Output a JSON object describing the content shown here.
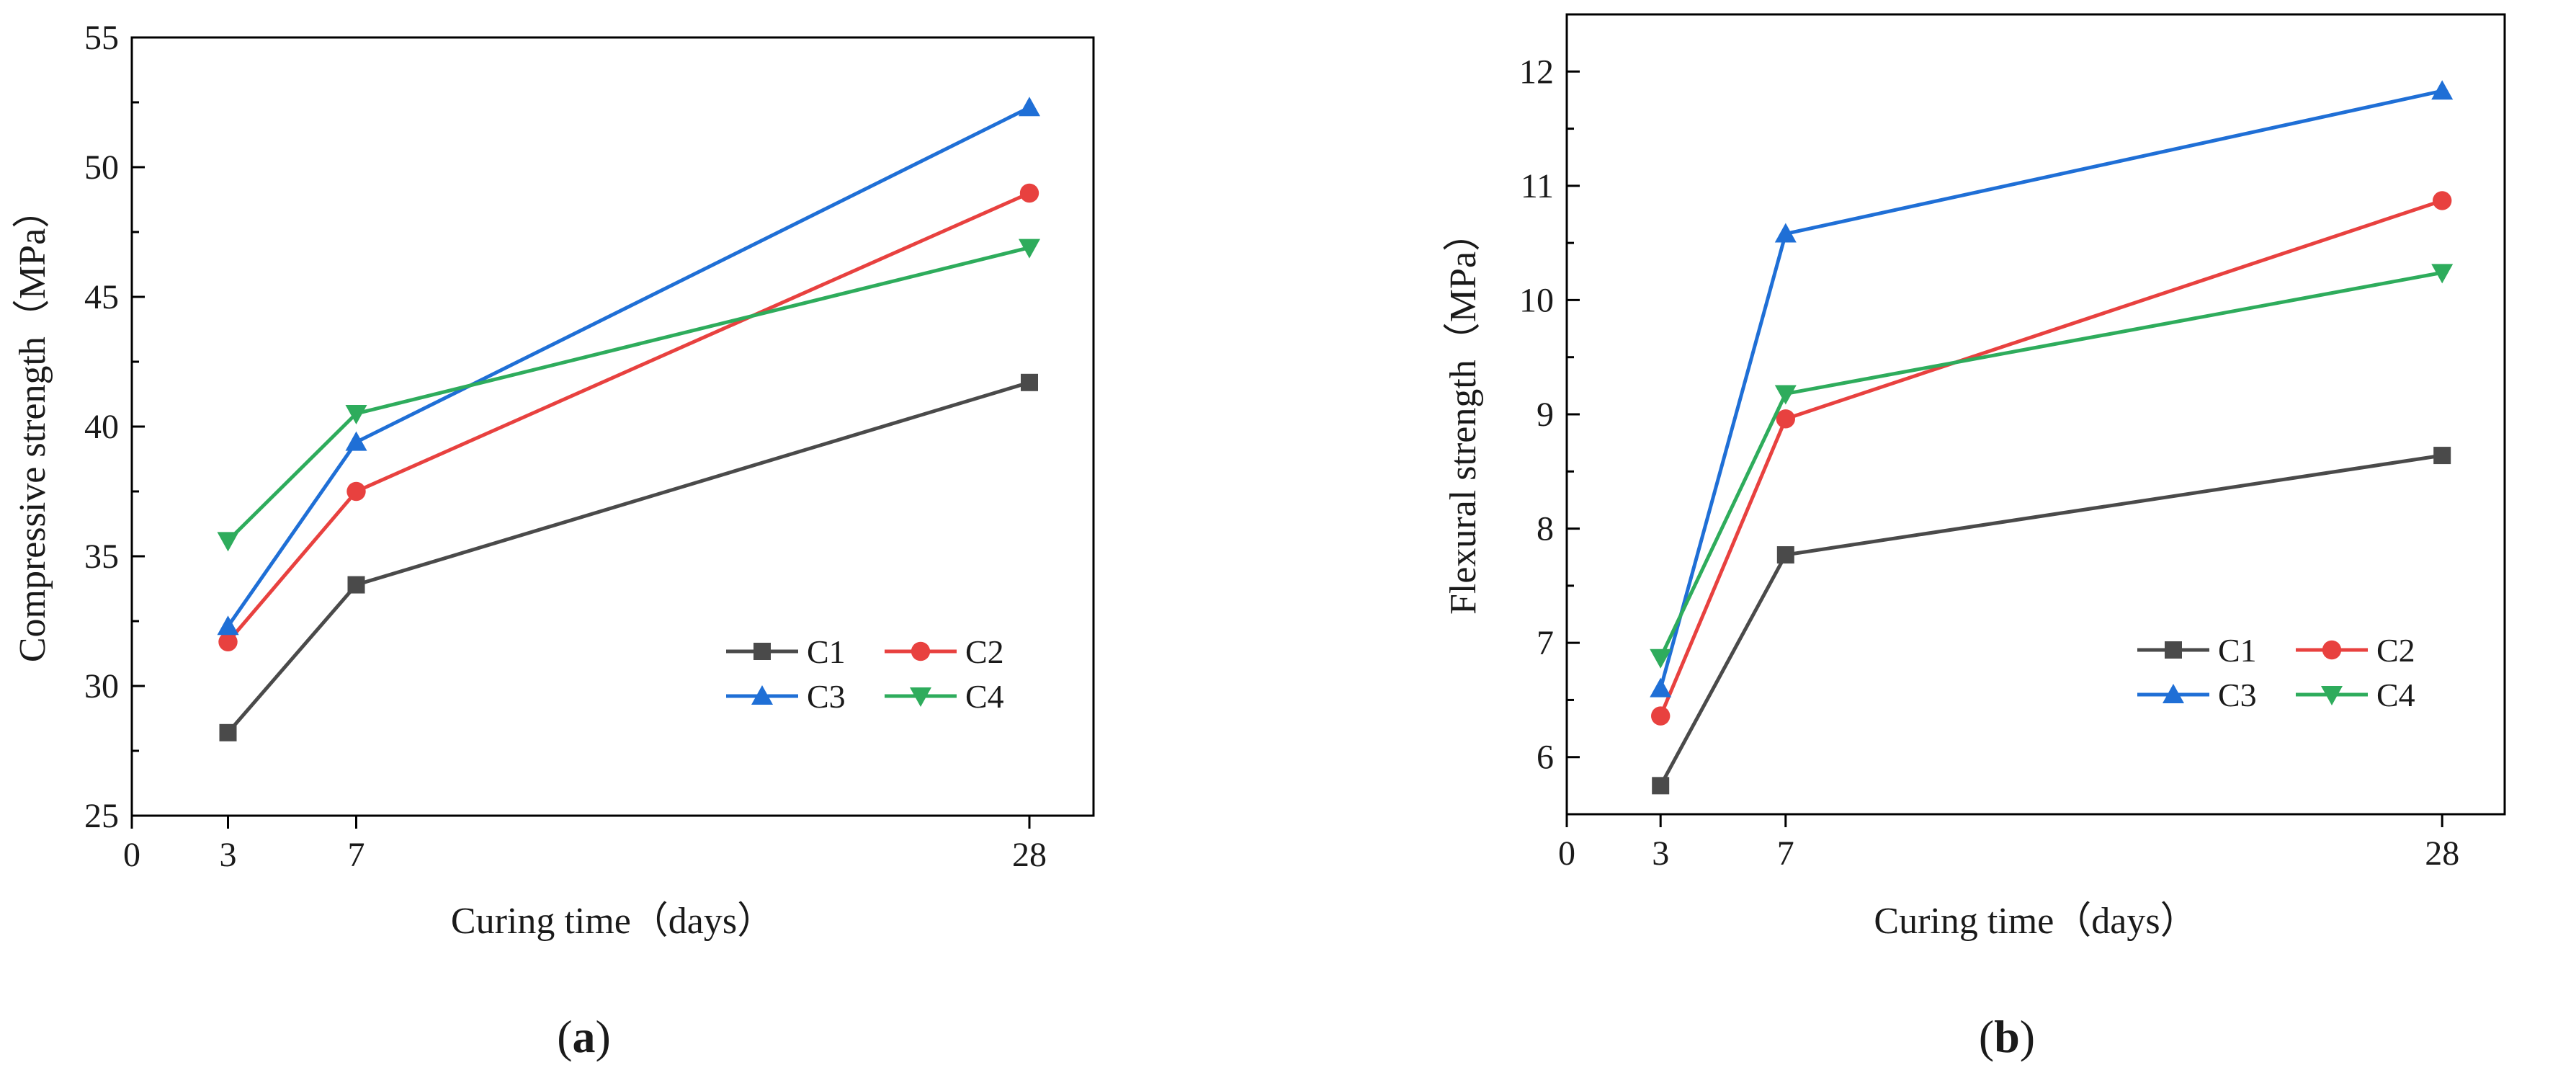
{
  "colors": {
    "C1": "#4a4a4a",
    "C2": "#e8413f",
    "C3": "#1f6fd6",
    "C4": "#2eac5c"
  },
  "chart_data": [
    {
      "type": "line",
      "panel_label": "a",
      "title": "",
      "xlabel": "Curing time（days）",
      "ylabel": "Compressive strength（MPa）",
      "x": [
        3,
        7,
        28
      ],
      "xlim": [
        0,
        30
      ],
      "xticks": [
        0,
        3,
        7,
        28
      ],
      "ylim": [
        25,
        55
      ],
      "yticks": [
        25,
        30,
        35,
        40,
        45,
        50,
        55
      ],
      "legend_position": "bottom-right",
      "series": [
        {
          "name": "C1",
          "marker": "square",
          "values": [
            28.2,
            33.9,
            41.7
          ]
        },
        {
          "name": "C2",
          "marker": "circle",
          "values": [
            31.7,
            37.5,
            49.0
          ]
        },
        {
          "name": "C3",
          "marker": "triangle-up",
          "values": [
            32.3,
            39.4,
            52.3
          ]
        },
        {
          "name": "C4",
          "marker": "triangle-down",
          "values": [
            35.6,
            40.5,
            46.9
          ]
        }
      ]
    },
    {
      "type": "line",
      "panel_label": "b",
      "title": "",
      "xlabel": "Curing time（days）",
      "ylabel": "Flexural strength（MPa）",
      "x": [
        3,
        7,
        28
      ],
      "xlim": [
        0,
        30
      ],
      "xticks": [
        0,
        3,
        7,
        28
      ],
      "ylim": [
        5.5,
        12.5
      ],
      "yticks": [
        6,
        7,
        8,
        9,
        10,
        11,
        12
      ],
      "legend_position": "bottom-right",
      "series": [
        {
          "name": "C1",
          "marker": "square",
          "values": [
            5.75,
            7.77,
            8.64
          ]
        },
        {
          "name": "C2",
          "marker": "circle",
          "values": [
            6.36,
            8.96,
            10.87
          ]
        },
        {
          "name": "C3",
          "marker": "triangle-up",
          "values": [
            6.6,
            10.58,
            11.83
          ]
        },
        {
          "name": "C4",
          "marker": "triangle-down",
          "values": [
            6.87,
            9.18,
            10.24
          ]
        }
      ]
    }
  ]
}
